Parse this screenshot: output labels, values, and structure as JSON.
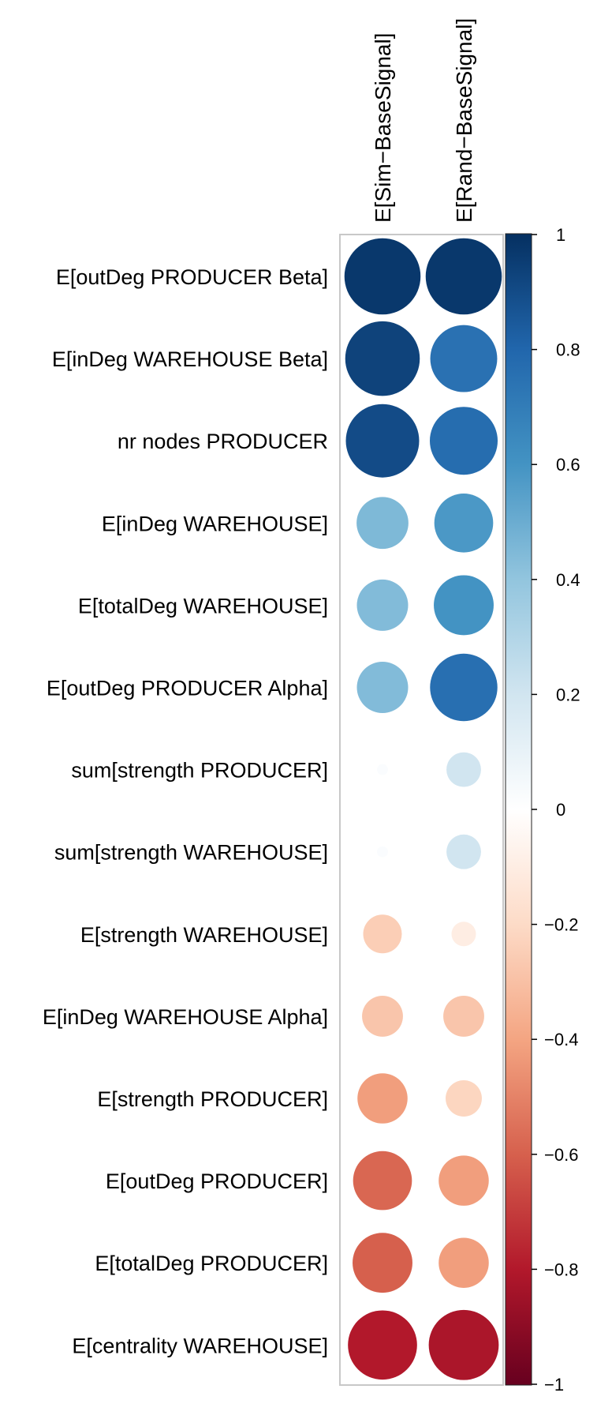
{
  "chart_data": {
    "type": "heatmap",
    "subtype": "correlation-circles",
    "title": "",
    "columns": [
      "E[Sim−BaseSignal]",
      "E[Rand−BaseSignal]"
    ],
    "rows": [
      "E[outDeg PRODUCER Beta]",
      "E[inDeg WAREHOUSE Beta]",
      "nr nodes PRODUCER",
      "E[inDeg WAREHOUSE]",
      "E[totalDeg WAREHOUSE]",
      "E[outDeg PRODUCER Alpha]",
      "sum[strength PRODUCER]",
      "sum[strength WAREHOUSE]",
      "E[strength WAREHOUSE]",
      "E[inDeg WAREHOUSE Alpha]",
      "E[strength PRODUCER]",
      "E[outDeg PRODUCER]",
      "E[totalDeg PRODUCER]",
      "E[centrality WAREHOUSE]"
    ],
    "values": [
      [
        0.97,
        0.97
      ],
      [
        0.93,
        0.75
      ],
      [
        0.9,
        0.77
      ],
      [
        0.45,
        0.58
      ],
      [
        0.44,
        0.6
      ],
      [
        0.44,
        0.76
      ],
      [
        0.02,
        0.2
      ],
      [
        0.02,
        0.2
      ],
      [
        -0.25,
        -0.1
      ],
      [
        -0.28,
        -0.28
      ],
      [
        -0.42,
        -0.22
      ],
      [
        -0.58,
        -0.42
      ],
      [
        -0.6,
        -0.42
      ],
      [
        -0.8,
        -0.82
      ]
    ],
    "colorbar": {
      "range": [
        -1,
        1
      ],
      "ticks": [
        1,
        0.8,
        0.6,
        0.4,
        0.2,
        0,
        -0.2,
        -0.4,
        -0.6,
        -0.8,
        -1
      ],
      "tick_labels": [
        "1",
        "0.8",
        "0.6",
        "0.4",
        "0.2",
        "0",
        "−0.2",
        "−0.4",
        "−0.6",
        "−0.8",
        "−1"
      ]
    },
    "colors": {
      "negative_end": "#67001F",
      "neutral": "#FFFFFF",
      "positive_end": "#053061"
    },
    "grid": false,
    "legend": "right"
  }
}
